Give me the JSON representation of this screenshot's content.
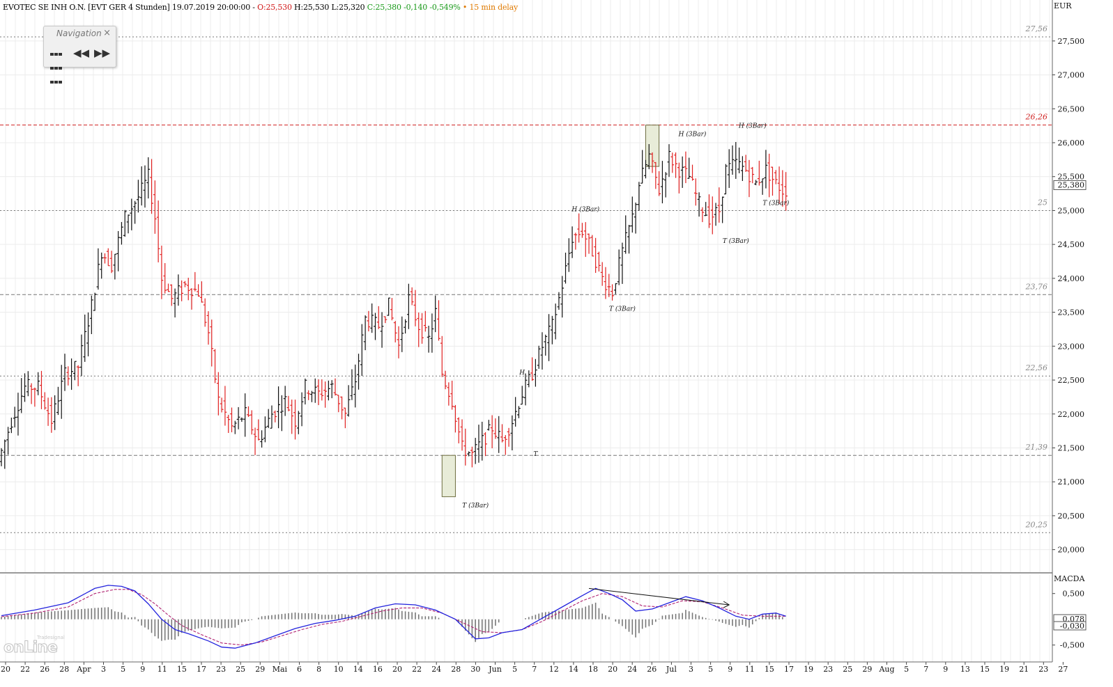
{
  "header": {
    "instrument": "EVOTEC SE INH O.N. [EVT GER 4 Stunden] 19.07.2019 20:00:00 -",
    "open": "O:25,530",
    "high": "H:25,530",
    "low": "L:25,320",
    "close_change": "C:25,380 -0,140 -0,549%",
    "delay": "• 15 min delay"
  },
  "navigation": {
    "title": "Navigation",
    "close": "×",
    "rewind": "◀◀",
    "forward": "▶▶"
  },
  "logo": {
    "small": "Tradesignal",
    "big": "onLine"
  },
  "colors": {
    "up": "#111111",
    "down": "#e02020",
    "macd": "#2222dd",
    "signal": "#b02070",
    "resistance": "#d02020",
    "support": "#777777",
    "box": "#e8ecd8"
  },
  "chart_data": {
    "type": "ohlc",
    "currency_label": "EUR",
    "ylim": [
      19.75,
      27.95
    ],
    "price_ticks": [
      "20,000",
      "20,500",
      "21,000",
      "21,500",
      "22,000",
      "22,500",
      "23,000",
      "23,500",
      "24,000",
      "24,500",
      "25,000",
      "25,500",
      "26,000",
      "26,500",
      "27,000",
      "27,500"
    ],
    "levels": [
      {
        "label": "27,56",
        "value": 27.56,
        "style": "dotted"
      },
      {
        "label": "26,26",
        "value": 26.26,
        "style": "dashed-red"
      },
      {
        "label": "25",
        "value": 25.0,
        "style": "dotted"
      },
      {
        "label": "23,76",
        "value": 23.76,
        "style": "dashed"
      },
      {
        "label": "22,56",
        "value": 22.56,
        "style": "dotted"
      },
      {
        "label": "21,39",
        "value": 21.39,
        "style": "dashed"
      },
      {
        "label": "20,25",
        "value": 20.25,
        "style": "dotted"
      }
    ],
    "last_price": "25,380",
    "x_labels": [
      "20",
      "22",
      "26",
      "28",
      "Apr",
      "3",
      "5",
      "9",
      "11",
      "15",
      "17",
      "23",
      "25",
      "29",
      "Mai",
      "6",
      "8",
      "10",
      "14",
      "16",
      "20",
      "22",
      "24",
      "28",
      "30",
      "Jun",
      "5",
      "7",
      "12",
      "14",
      "18",
      "20",
      "24",
      "26",
      "Jul",
      "3",
      "5",
      "9",
      "11",
      "15",
      "17",
      "19",
      "23",
      "25",
      "29",
      "Aug",
      "5",
      "7",
      "9",
      "13",
      "15",
      "19",
      "21",
      "23",
      "27"
    ],
    "trend_points": [
      [
        0,
        21.3
      ],
      [
        4,
        21.9
      ],
      [
        8,
        22.4
      ],
      [
        12,
        22.4
      ],
      [
        16,
        21.9
      ],
      [
        20,
        22.6
      ],
      [
        24,
        22.7
      ],
      [
        28,
        23.6
      ],
      [
        31,
        24.4
      ],
      [
        34,
        24.2
      ],
      [
        38,
        24.9
      ],
      [
        42,
        25.2
      ],
      [
        45,
        25.5
      ],
      [
        47,
        24.9
      ],
      [
        49,
        24.0
      ],
      [
        52,
        23.7
      ],
      [
        56,
        23.9
      ],
      [
        60,
        23.8
      ],
      [
        63,
        23.2
      ],
      [
        66,
        22.2
      ],
      [
        70,
        21.8
      ],
      [
        74,
        22.0
      ],
      [
        78,
        21.6
      ],
      [
        82,
        22.0
      ],
      [
        86,
        22.2
      ],
      [
        89,
        21.9
      ],
      [
        92,
        22.4
      ],
      [
        96,
        22.3
      ],
      [
        100,
        22.4
      ],
      [
        104,
        22.0
      ],
      [
        107,
        22.5
      ],
      [
        110,
        23.4
      ],
      [
        114,
        23.3
      ],
      [
        117,
        23.6
      ],
      [
        120,
        23.0
      ],
      [
        123,
        23.7
      ],
      [
        126,
        23.3
      ],
      [
        129,
        23.1
      ],
      [
        131,
        23.5
      ],
      [
        133,
        22.6
      ],
      [
        136,
        22.2
      ],
      [
        139,
        21.5
      ],
      [
        142,
        21.4
      ],
      [
        145,
        21.6
      ],
      [
        148,
        21.8
      ],
      [
        151,
        21.6
      ],
      [
        154,
        21.9
      ],
      [
        157,
        22.3
      ],
      [
        160,
        22.6
      ],
      [
        163,
        23.0
      ],
      [
        166,
        23.3
      ],
      [
        169,
        23.9
      ],
      [
        172,
        24.6
      ],
      [
        175,
        24.7
      ],
      [
        178,
        24.4
      ],
      [
        181,
        24.0
      ],
      [
        184,
        23.8
      ],
      [
        187,
        24.4
      ],
      [
        190,
        24.9
      ],
      [
        192,
        25.4
      ],
      [
        195,
        25.8
      ],
      [
        198,
        25.3
      ],
      [
        201,
        25.8
      ],
      [
        204,
        25.6
      ],
      [
        207,
        25.5
      ],
      [
        210,
        25.1
      ],
      [
        213,
        24.9
      ],
      [
        216,
        25.0
      ],
      [
        218,
        25.6
      ],
      [
        221,
        25.7
      ],
      [
        224,
        25.6
      ],
      [
        227,
        25.4
      ],
      [
        230,
        25.6
      ],
      [
        233,
        25.4
      ],
      [
        235,
        25.3
      ]
    ],
    "annotations": [
      {
        "label": "T (3Bar)",
        "bar": 142,
        "price": 20.62
      },
      {
        "label": "H",
        "bar": 156,
        "price": 22.58
      },
      {
        "label": "T",
        "bar": 160,
        "price": 21.38
      },
      {
        "label": "H (3Bar)",
        "bar": 175,
        "price": 24.99
      },
      {
        "label": "T (3Bar)",
        "bar": 186,
        "price": 23.52
      },
      {
        "label": "H (3Bar)",
        "bar": 207,
        "price": 26.1
      },
      {
        "label": "T (3Bar)",
        "bar": 220,
        "price": 24.52
      },
      {
        "label": "H (3Bar)",
        "bar": 225,
        "price": 26.22
      },
      {
        "label": "T (3Bar)",
        "bar": 232,
        "price": 25.08
      }
    ],
    "boxes": [
      {
        "bar_from": 132,
        "bar_to": 136,
        "top": 21.39,
        "bottom": 20.78
      },
      {
        "bar_from": 193,
        "bar_to": 197,
        "top": 26.26,
        "bottom": 25.65
      }
    ],
    "macd": {
      "label": "MACDA",
      "ticks": [
        "0,500",
        "-0,500"
      ],
      "values": [
        "0,078",
        "-0,030"
      ],
      "ylim": [
        -0.72,
        0.78
      ],
      "macd_points": [
        [
          0,
          0.07
        ],
        [
          10,
          0.18
        ],
        [
          20,
          0.32
        ],
        [
          28,
          0.6
        ],
        [
          32,
          0.66
        ],
        [
          36,
          0.64
        ],
        [
          40,
          0.55
        ],
        [
          44,
          0.3
        ],
        [
          48,
          0.0
        ],
        [
          52,
          -0.2
        ],
        [
          56,
          -0.28
        ],
        [
          62,
          -0.42
        ],
        [
          66,
          -0.54
        ],
        [
          70,
          -0.56
        ],
        [
          76,
          -0.46
        ],
        [
          82,
          -0.32
        ],
        [
          88,
          -0.18
        ],
        [
          94,
          -0.08
        ],
        [
          100,
          -0.02
        ],
        [
          106,
          0.06
        ],
        [
          112,
          0.22
        ],
        [
          118,
          0.3
        ],
        [
          124,
          0.28
        ],
        [
          130,
          0.18
        ],
        [
          136,
          0.0
        ],
        [
          142,
          -0.38
        ],
        [
          146,
          -0.36
        ],
        [
          150,
          -0.26
        ],
        [
          156,
          -0.2
        ],
        [
          162,
          0.02
        ],
        [
          168,
          0.24
        ],
        [
          174,
          0.46
        ],
        [
          178,
          0.6
        ],
        [
          182,
          0.5
        ],
        [
          186,
          0.38
        ],
        [
          190,
          0.16
        ],
        [
          195,
          0.2
        ],
        [
          200,
          0.32
        ],
        [
          205,
          0.44
        ],
        [
          210,
          0.36
        ],
        [
          215,
          0.22
        ],
        [
          220,
          0.06
        ],
        [
          224,
          0.0
        ],
        [
          228,
          0.1
        ],
        [
          232,
          0.12
        ],
        [
          235,
          0.06
        ]
      ],
      "signal_points": [
        [
          0,
          0.05
        ],
        [
          10,
          0.12
        ],
        [
          20,
          0.24
        ],
        [
          28,
          0.5
        ],
        [
          34,
          0.58
        ],
        [
          38,
          0.58
        ],
        [
          42,
          0.48
        ],
        [
          46,
          0.3
        ],
        [
          50,
          0.08
        ],
        [
          54,
          -0.12
        ],
        [
          60,
          -0.3
        ],
        [
          66,
          -0.46
        ],
        [
          72,
          -0.5
        ],
        [
          78,
          -0.44
        ],
        [
          84,
          -0.32
        ],
        [
          90,
          -0.2
        ],
        [
          96,
          -0.1
        ],
        [
          102,
          -0.04
        ],
        [
          108,
          0.06
        ],
        [
          114,
          0.16
        ],
        [
          120,
          0.22
        ],
        [
          126,
          0.22
        ],
        [
          132,
          0.12
        ],
        [
          138,
          -0.06
        ],
        [
          144,
          -0.24
        ],
        [
          150,
          -0.26
        ],
        [
          156,
          -0.2
        ],
        [
          162,
          -0.04
        ],
        [
          168,
          0.16
        ],
        [
          174,
          0.36
        ],
        [
          180,
          0.5
        ],
        [
          186,
          0.44
        ],
        [
          192,
          0.26
        ],
        [
          198,
          0.24
        ],
        [
          204,
          0.36
        ],
        [
          210,
          0.34
        ],
        [
          216,
          0.22
        ],
        [
          222,
          0.08
        ],
        [
          228,
          0.06
        ],
        [
          235,
          0.06
        ]
      ],
      "divergence_arrow": {
        "from": [
          176,
          0.6
        ],
        "to": [
          218,
          0.28
        ]
      }
    }
  }
}
